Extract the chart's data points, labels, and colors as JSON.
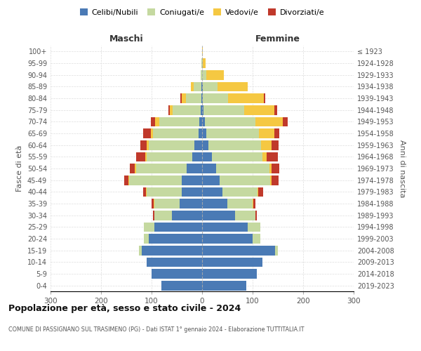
{
  "age_groups": [
    "0-4",
    "5-9",
    "10-14",
    "15-19",
    "20-24",
    "25-29",
    "30-34",
    "35-39",
    "40-44",
    "45-49",
    "50-54",
    "55-59",
    "60-64",
    "65-69",
    "70-74",
    "75-79",
    "80-84",
    "85-89",
    "90-94",
    "95-99",
    "100+"
  ],
  "birth_years": [
    "2019-2023",
    "2014-2018",
    "2009-2013",
    "2004-2008",
    "1999-2003",
    "1994-1998",
    "1989-1993",
    "1984-1988",
    "1979-1983",
    "1974-1978",
    "1969-1973",
    "1964-1968",
    "1959-1963",
    "1954-1958",
    "1949-1953",
    "1944-1948",
    "1939-1943",
    "1934-1938",
    "1929-1933",
    "1924-1928",
    "≤ 1923"
  ],
  "colors": {
    "celibi": "#4a7ab5",
    "coniugati": "#c5d9a0",
    "vedovi": "#f5c842",
    "divorziati": "#c0392b"
  },
  "maschi": {
    "celibi": [
      80,
      100,
      110,
      120,
      105,
      95,
      60,
      45,
      40,
      40,
      30,
      20,
      15,
      7,
      5,
      3,
      2,
      2,
      0,
      0,
      0
    ],
    "coniugati": [
      0,
      0,
      0,
      5,
      10,
      20,
      35,
      50,
      70,
      105,
      100,
      90,
      90,
      90,
      80,
      55,
      30,
      15,
      3,
      1,
      0
    ],
    "vedovi": [
      0,
      0,
      0,
      0,
      0,
      0,
      0,
      1,
      1,
      1,
      3,
      3,
      5,
      5,
      8,
      6,
      8,
      5,
      0,
      0,
      0
    ],
    "divorziati": [
      0,
      0,
      0,
      0,
      0,
      0,
      2,
      4,
      5,
      8,
      10,
      18,
      12,
      15,
      8,
      3,
      3,
      0,
      0,
      0,
      0
    ]
  },
  "femmine": {
    "nubili": [
      88,
      108,
      120,
      145,
      100,
      90,
      65,
      50,
      40,
      35,
      28,
      20,
      12,
      8,
      5,
      3,
      2,
      2,
      0,
      0,
      0
    ],
    "coniugate": [
      0,
      0,
      0,
      5,
      15,
      25,
      40,
      50,
      70,
      100,
      105,
      100,
      105,
      105,
      100,
      80,
      50,
      28,
      8,
      2,
      0
    ],
    "vedove": [
      0,
      0,
      0,
      0,
      0,
      0,
      0,
      1,
      1,
      2,
      5,
      8,
      20,
      30,
      55,
      60,
      70,
      60,
      35,
      5,
      1
    ],
    "divorziate": [
      0,
      0,
      0,
      0,
      0,
      0,
      3,
      5,
      10,
      15,
      15,
      22,
      15,
      10,
      10,
      5,
      3,
      0,
      0,
      0,
      0
    ]
  },
  "xlim": 300,
  "title": "Popolazione per età, sesso e stato civile - 2024",
  "subtitle": "COMUNE DI PASSIGNANO SUL TRASIMENO (PG) - Dati ISTAT 1° gennaio 2024 - Elaborazione TUTTITALIA.IT",
  "xlabel_left": "Maschi",
  "xlabel_right": "Femmine",
  "ylabel": "Fasce di età",
  "ylabel_right": "Anni di nascita",
  "legend_labels": [
    "Celibi/Nubili",
    "Coniugati/e",
    "Vedovi/e",
    "Divorziati/e"
  ],
  "background_color": "#ffffff",
  "grid_color": "#cccccc"
}
